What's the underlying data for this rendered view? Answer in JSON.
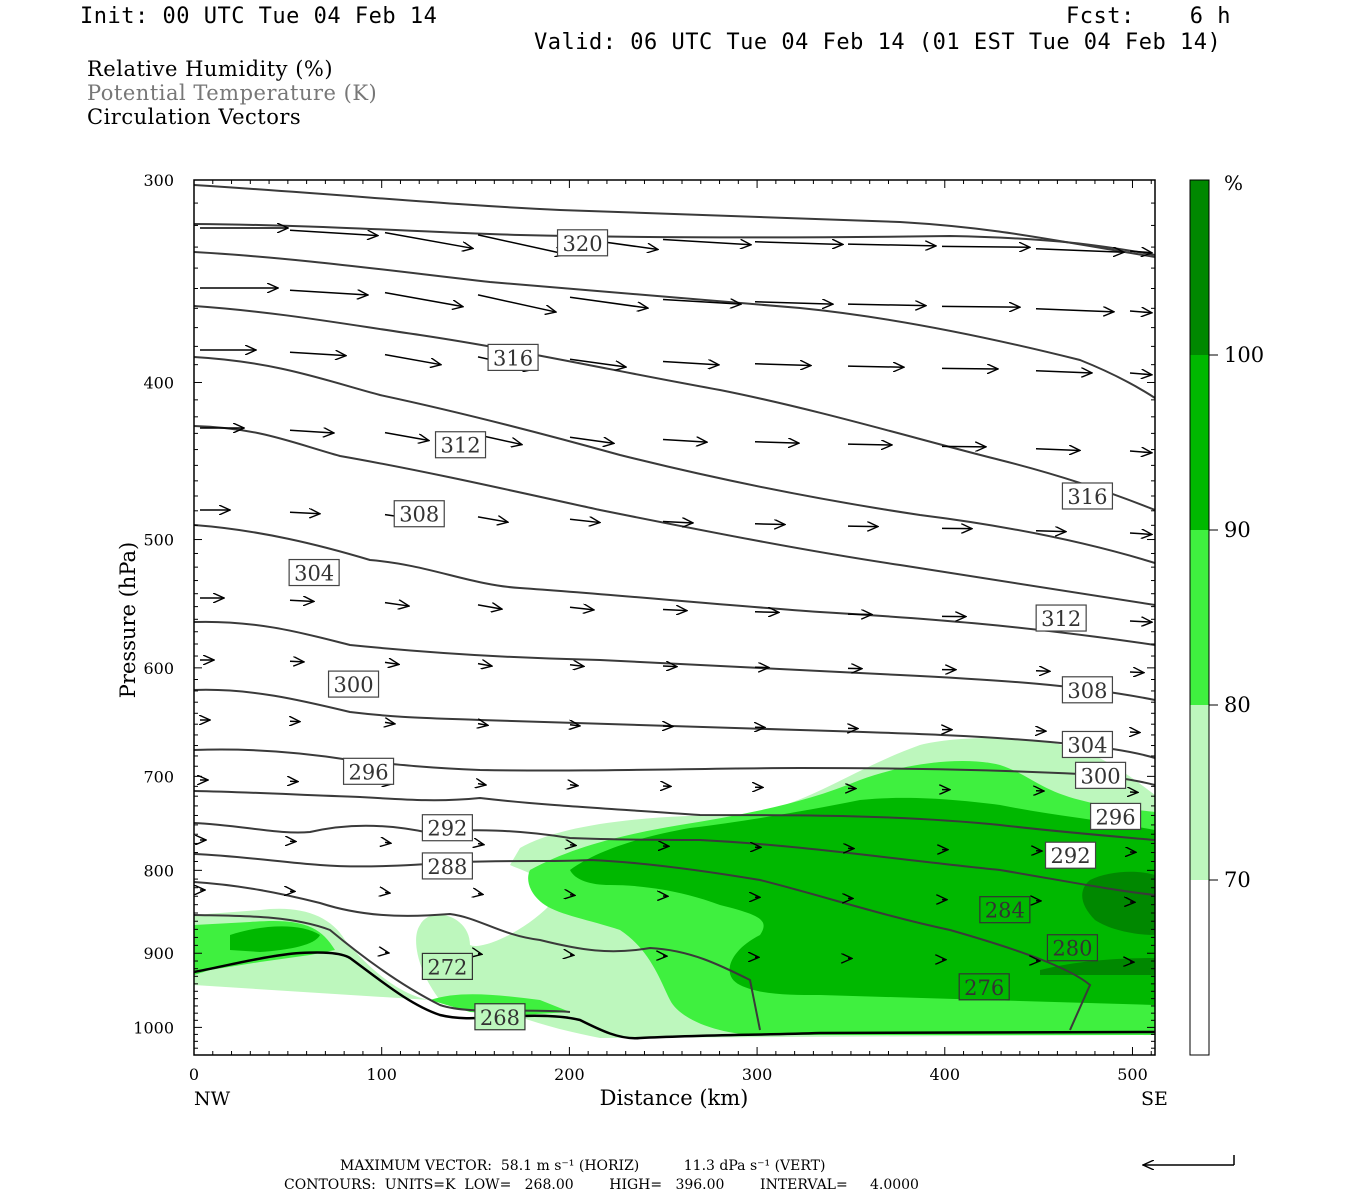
{
  "header": {
    "init": "Init: 00 UTC Tue 04 Feb 14",
    "fcst": "Fcst:    6 h",
    "valid": "Valid: 06 UTC Tue 04 Feb 14 (01 EST Tue 04 Feb 14)"
  },
  "fields": {
    "rh": "Relative Humidity (%)",
    "theta": "Potential Temperature (K)",
    "vectors": "Circulation Vectors"
  },
  "footer": {
    "max_vector": "MAXIMUM VECTOR:  58.1 m s⁻¹ (HORIZ)          11.3 dPa s⁻¹ (VERT)",
    "contours": "CONTOURS:  UNITS=K  LOW=   268.00        HIGH=   396.00        INTERVAL=     4.0000"
  },
  "colors": {
    "rh_70": "#bdf7bd",
    "rh_80": "#3ff03f",
    "rh_90": "#00b800",
    "rh_100": "#008800",
    "contour": "#3a3a3a"
  },
  "chart_data": {
    "type": "cross-section",
    "xlabel": "Distance (km)",
    "ylabel": "Pressure (hPa)",
    "xlim": [
      0,
      512
    ],
    "ylim": [
      1040,
      300
    ],
    "y_log": true,
    "x_ticks": [
      "0",
      "100",
      "200",
      "300",
      "400",
      "500"
    ],
    "y_ticks": [
      "300",
      "400",
      "500",
      "600",
      "700",
      "800",
      "900",
      "1000"
    ],
    "endpoints": {
      "left": "NW",
      "right": "SE"
    },
    "colorbar": {
      "unit": "%",
      "levels": [
        "70",
        "80",
        "90",
        "100"
      ],
      "colors": [
        "#bdf7bd",
        "#3ff03f",
        "#00b800",
        "#008800"
      ]
    },
    "contour_labels": [
      {
        "value": "320",
        "x": 207,
        "p": 328
      },
      {
        "value": "316",
        "x": 170,
        "p": 386
      },
      {
        "value": "312",
        "x": 142,
        "p": 437
      },
      {
        "value": "308",
        "x": 120,
        "p": 482
      },
      {
        "value": "304",
        "x": 64,
        "p": 524
      },
      {
        "value": "300",
        "x": 85,
        "p": 614
      },
      {
        "value": "296",
        "x": 93,
        "p": 695
      },
      {
        "value": "292",
        "x": 135,
        "p": 753
      },
      {
        "value": "288",
        "x": 135,
        "p": 795
      },
      {
        "value": "284",
        "x": 432,
        "p": 846
      },
      {
        "value": "280",
        "x": 468,
        "p": 893
      },
      {
        "value": "276",
        "x": 421,
        "p": 944
      },
      {
        "value": "272",
        "x": 135,
        "p": 917
      },
      {
        "value": "268",
        "x": 163,
        "p": 985
      },
      {
        "value": "316",
        "x": 476,
        "p": 470
      },
      {
        "value": "312",
        "x": 462,
        "p": 559
      },
      {
        "value": "308",
        "x": 476,
        "p": 619
      },
      {
        "value": "304",
        "x": 476,
        "p": 669
      },
      {
        "value": "300",
        "x": 483,
        "p": 699
      },
      {
        "value": "296",
        "x": 491,
        "p": 741
      },
      {
        "value": "292",
        "x": 467,
        "p": 783
      }
    ],
    "max_vector": {
      "horiz": "58.1 m s-1",
      "vert": "11.3 dPa s-1"
    },
    "contours": {
      "units": "K",
      "low": 268.0,
      "high": 396.0,
      "interval": 4.0
    }
  }
}
